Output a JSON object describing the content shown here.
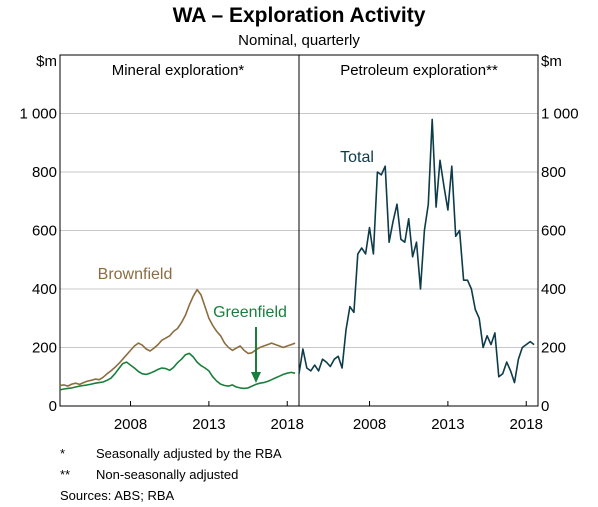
{
  "title": "WA – Exploration Activity",
  "subtitle": "Nominal, quarterly",
  "unit_label": "$m",
  "footnotes": [
    {
      "marker": "*",
      "text": "Seasonally adjusted by the RBA"
    },
    {
      "marker": "**",
      "text": "Non-seasonally adjusted"
    }
  ],
  "sources": {
    "label": "Sources:",
    "text": "ABS; RBA"
  },
  "colors": {
    "brownfield": "#8C6D3F",
    "greenfield": "#1A7F3C",
    "total": "#0E3B4A",
    "axis": "#000000"
  },
  "chart_data": [
    {
      "type": "line",
      "title": "Mineral exploration*",
      "ylim": [
        0,
        1200
      ],
      "yticks": [
        0,
        200,
        400,
        600,
        800,
        1000
      ],
      "ytick_labels": [
        "0",
        "200",
        "400",
        "600",
        "800",
        "1 000"
      ],
      "xlim": [
        2004.0,
        2019.25
      ],
      "xticks": [
        2008,
        2013,
        2018
      ],
      "xtick_labels": [
        "2008",
        "2013",
        "2018"
      ],
      "x_start": 2004.0,
      "x_step": 0.25,
      "series": [
        {
          "name": "Brownfield",
          "color": "#8C6D3F",
          "values": [
            70,
            72,
            68,
            75,
            78,
            74,
            80,
            85,
            88,
            92,
            90,
            98,
            110,
            120,
            132,
            145,
            160,
            175,
            190,
            205,
            215,
            208,
            195,
            188,
            198,
            210,
            225,
            232,
            240,
            255,
            265,
            285,
            310,
            345,
            375,
            398,
            380,
            340,
            300,
            275,
            255,
            240,
            215,
            200,
            190,
            198,
            205,
            190,
            180,
            182,
            192,
            200,
            205,
            210,
            215,
            210,
            205,
            200,
            205,
            210,
            215
          ]
        },
        {
          "name": "Greenfield",
          "color": "#1A7F3C",
          "values": [
            55,
            58,
            60,
            62,
            65,
            68,
            70,
            72,
            75,
            78,
            80,
            82,
            88,
            95,
            110,
            128,
            145,
            150,
            140,
            130,
            118,
            110,
            108,
            112,
            118,
            125,
            130,
            128,
            122,
            132,
            148,
            160,
            175,
            180,
            168,
            150,
            138,
            130,
            120,
            100,
            85,
            75,
            70,
            68,
            72,
            65,
            62,
            60,
            62,
            68,
            74,
            78,
            80,
            84,
            90,
            96,
            102,
            108,
            112,
            115,
            112
          ]
        }
      ]
    },
    {
      "type": "line",
      "title": "Petroleum exploration**",
      "ylim": [
        0,
        1200
      ],
      "yticks": [
        0,
        200,
        400,
        600,
        800,
        1000
      ],
      "ytick_labels": [
        "0",
        "200",
        "400",
        "600",
        "800",
        "1 000"
      ],
      "xlim": [
        2004.0,
        2019.25
      ],
      "xticks": [
        2008,
        2013,
        2018
      ],
      "xtick_labels": [
        "2008",
        "2013",
        "2018"
      ],
      "x_start": 2004.0,
      "x_step": 0.25,
      "series": [
        {
          "name": "Total",
          "color": "#0E3B4A",
          "values": [
            110,
            195,
            130,
            120,
            140,
            120,
            160,
            150,
            135,
            160,
            170,
            130,
            260,
            340,
            320,
            520,
            540,
            520,
            610,
            520,
            800,
            790,
            820,
            560,
            630,
            690,
            570,
            560,
            640,
            510,
            560,
            400,
            600,
            690,
            980,
            680,
            840,
            750,
            670,
            820,
            580,
            600,
            430,
            430,
            400,
            330,
            300,
            200,
            240,
            210,
            250,
            100,
            110,
            150,
            120,
            80,
            160,
            200,
            210,
            220,
            210
          ]
        }
      ]
    }
  ],
  "annotations": {
    "brownfield": "Brownfield",
    "greenfield": "Greenfield",
    "total": "Total"
  }
}
